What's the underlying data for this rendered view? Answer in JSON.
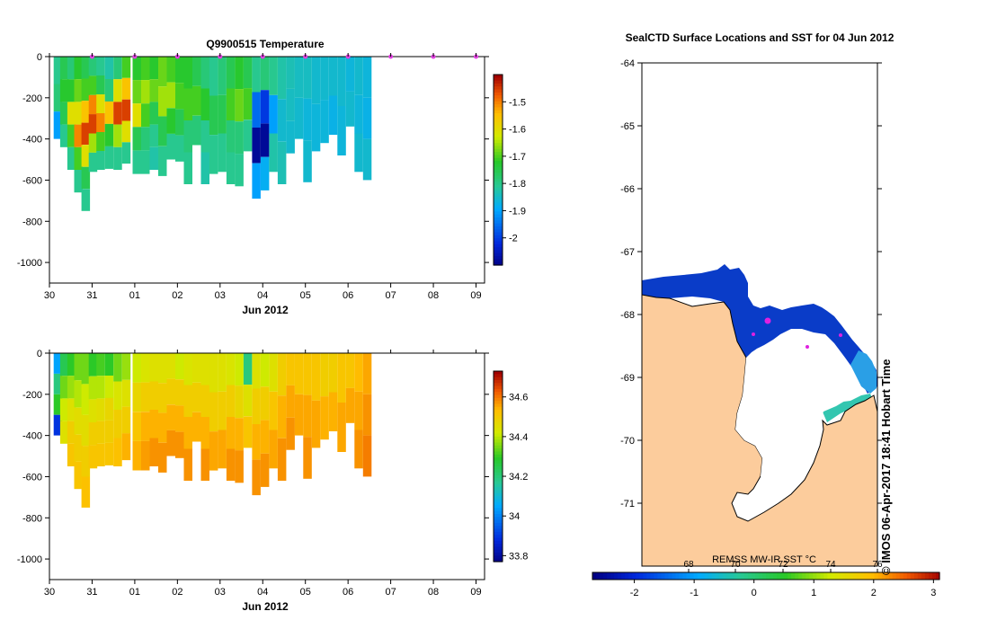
{
  "chart_data": [
    {
      "type": "heatmap",
      "title": "Q9900515  Temperature",
      "xlabel": "Jun 2012",
      "ylabel": "",
      "x_ticks": [
        "30",
        "31",
        "01",
        "02",
        "03",
        "04",
        "05",
        "06",
        "07",
        "08",
        "09"
      ],
      "y_ticks": [
        0,
        -200,
        -400,
        -600,
        -800,
        -1000
      ],
      "ylim": [
        -1100,
        0
      ],
      "xlim": [
        30.0,
        40.2
      ],
      "colorbar": {
        "ticks": [
          -1.5,
          -1.6,
          -1.7,
          -1.8,
          -1.9,
          -2
        ],
        "range": [
          -2.1,
          -1.4
        ]
      },
      "profile_marker_days": [
        31,
        32,
        33,
        34,
        35,
        36,
        37,
        38,
        39,
        40
      ],
      "profiles": [
        {
          "day": 30.2,
          "depth": 400,
          "v": [
            -1.8,
            -1.78,
            -1.9
          ]
        },
        {
          "day": 30.35,
          "depth": 440,
          "v": [
            -1.75,
            -1.72,
            -1.75,
            -1.8
          ]
        },
        {
          "day": 30.52,
          "depth": 550,
          "v": [
            -1.78,
            -1.72,
            -1.6,
            -1.7,
            -1.8
          ]
        },
        {
          "day": 30.68,
          "depth": 660,
          "v": [
            -1.72,
            -1.68,
            -1.6,
            -1.5,
            -1.7,
            -1.8
          ]
        },
        {
          "day": 30.85,
          "depth": 750,
          "v": [
            -1.75,
            -1.7,
            -1.55,
            -1.45,
            -1.6,
            -1.75,
            -1.8
          ]
        },
        {
          "day": 31.02,
          "depth": 560,
          "v": [
            -1.78,
            -1.7,
            -1.5,
            -1.45,
            -1.65,
            -1.8
          ]
        },
        {
          "day": 31.2,
          "depth": 550,
          "v": [
            -1.8,
            -1.75,
            -1.6,
            -1.5,
            -1.7,
            -1.8
          ]
        },
        {
          "day": 31.4,
          "depth": 545,
          "v": [
            -1.82,
            -1.78,
            -1.55,
            -1.72,
            -1.8
          ]
        },
        {
          "day": 31.6,
          "depth": 550,
          "v": [
            -1.78,
            -1.6,
            -1.45,
            -1.65,
            -1.8
          ]
        },
        {
          "day": 31.8,
          "depth": 520,
          "v": [
            -1.7,
            -1.55,
            -1.45,
            -1.6,
            -1.8
          ]
        },
        {
          "day": 32.05,
          "depth": 570,
          "v": [
            -1.72,
            -1.68,
            -1.6,
            -1.75,
            -1.8
          ]
        },
        {
          "day": 32.25,
          "depth": 570,
          "v": [
            -1.7,
            -1.65,
            -1.7,
            -1.78,
            -1.8
          ]
        },
        {
          "day": 32.45,
          "depth": 550,
          "v": [
            -1.72,
            -1.68,
            -1.75,
            -1.8,
            -1.82
          ]
        },
        {
          "day": 32.65,
          "depth": 580,
          "v": [
            -1.68,
            -1.65,
            -1.75,
            -1.8
          ]
        },
        {
          "day": 32.85,
          "depth": 500,
          "v": [
            -1.7,
            -1.65,
            -1.72,
            -1.8
          ]
        },
        {
          "day": 33.05,
          "depth": 510,
          "v": [
            -1.72,
            -1.7,
            -1.75,
            -1.8
          ]
        },
        {
          "day": 33.25,
          "depth": 620,
          "v": [
            -1.72,
            -1.7,
            -1.78,
            -1.8
          ]
        },
        {
          "day": 33.45,
          "depth": 430,
          "v": [
            -1.75,
            -1.7,
            -1.78
          ]
        },
        {
          "day": 33.65,
          "depth": 620,
          "v": [
            -1.78,
            -1.72,
            -1.8,
            -1.82
          ]
        },
        {
          "day": 33.85,
          "depth": 570,
          "v": [
            -1.8,
            -1.75,
            -1.8
          ]
        },
        {
          "day": 34.05,
          "depth": 560,
          "v": [
            -1.78,
            -1.75,
            -1.8
          ]
        },
        {
          "day": 34.25,
          "depth": 620,
          "v": [
            -1.75,
            -1.7,
            -1.78,
            -1.8
          ]
        },
        {
          "day": 34.45,
          "depth": 630,
          "v": [
            -1.72,
            -1.68,
            -1.78,
            -1.8
          ]
        },
        {
          "day": 34.65,
          "depth": 460,
          "v": [
            -1.75,
            -1.7,
            -1.8
          ]
        },
        {
          "day": 34.85,
          "depth": 690,
          "v": [
            -1.8,
            -1.95,
            -2.08,
            -1.9
          ]
        },
        {
          "day": 35.05,
          "depth": 650,
          "v": [
            -1.78,
            -2.0,
            -2.08,
            -1.88
          ]
        },
        {
          "day": 35.25,
          "depth": 560,
          "v": [
            -1.8,
            -1.9,
            -1.82
          ]
        },
        {
          "day": 35.45,
          "depth": 620,
          "v": [
            -1.82,
            -1.85,
            -1.83
          ]
        },
        {
          "day": 35.65,
          "depth": 470,
          "v": [
            -1.83,
            -1.84,
            -1.85
          ]
        },
        {
          "day": 35.85,
          "depth": 400,
          "v": [
            -1.84,
            -1.85
          ]
        },
        {
          "day": 36.05,
          "depth": 610,
          "v": [
            -1.84,
            -1.86,
            -1.85
          ]
        },
        {
          "day": 36.25,
          "depth": 460,
          "v": [
            -1.85,
            -1.86
          ]
        },
        {
          "day": 36.45,
          "depth": 420,
          "v": [
            -1.85,
            -1.86
          ]
        },
        {
          "day": 36.65,
          "depth": 380,
          "v": [
            -1.85,
            -1.87
          ]
        },
        {
          "day": 36.85,
          "depth": 480,
          "v": [
            -1.85,
            -1.86
          ]
        },
        {
          "day": 37.05,
          "depth": 340,
          "v": [
            -1.86,
            -1.85
          ]
        },
        {
          "day": 37.25,
          "depth": 560,
          "v": [
            -1.85,
            -1.86,
            -1.85
          ]
        },
        {
          "day": 37.45,
          "depth": 600,
          "v": [
            -1.86,
            -1.87,
            -1.85
          ]
        }
      ],
      "min_depths": [
        400,
        440,
        550,
        660,
        750,
        560,
        550,
        545,
        550,
        520,
        570,
        570,
        550,
        580,
        500,
        510,
        620,
        430,
        620,
        570,
        560,
        620,
        630,
        460,
        690,
        650,
        560,
        620,
        470,
        400,
        610,
        460,
        420,
        380,
        480,
        340,
        560,
        600
      ]
    },
    {
      "type": "heatmap",
      "title": "",
      "xlabel": "Jun 2012",
      "ylabel": "",
      "x_ticks": [
        "30",
        "31",
        "01",
        "02",
        "03",
        "04",
        "05",
        "06",
        "07",
        "08",
        "09"
      ],
      "y_ticks": [
        0,
        -200,
        -400,
        -600,
        -800,
        -1000
      ],
      "ylim": [
        -1100,
        0
      ],
      "xlim": [
        30.0,
        40.2
      ],
      "colorbar": {
        "ticks": [
          34.6,
          34.4,
          34.2,
          34,
          33.8
        ],
        "range": [
          33.77,
          34.73
        ]
      },
      "profiles": [
        {
          "day": 30.2,
          "depth": 400,
          "v": [
            34.05,
            34.2,
            34.3,
            33.9
          ]
        },
        {
          "day": 30.35,
          "depth": 440,
          "v": [
            34.25,
            34.35,
            34.42,
            34.45
          ]
        },
        {
          "day": 30.52,
          "depth": 550,
          "v": [
            34.3,
            34.38,
            34.45,
            34.5,
            34.52
          ]
        },
        {
          "day": 30.68,
          "depth": 660,
          "v": [
            34.35,
            34.4,
            34.46,
            34.5,
            34.52
          ]
        },
        {
          "day": 30.85,
          "depth": 750,
          "v": [
            34.35,
            34.42,
            34.46,
            34.5,
            34.53
          ]
        },
        {
          "day": 31.02,
          "depth": 560,
          "v": [
            34.3,
            34.4,
            34.45,
            34.5,
            34.52
          ]
        },
        {
          "day": 31.2,
          "depth": 550,
          "v": [
            34.32,
            34.4,
            34.46,
            34.5,
            34.52
          ]
        },
        {
          "day": 31.4,
          "depth": 545,
          "v": [
            34.3,
            34.42,
            34.48,
            34.5,
            34.52
          ]
        },
        {
          "day": 31.6,
          "depth": 550,
          "v": [
            34.35,
            34.44,
            34.5,
            34.53
          ]
        },
        {
          "day": 31.8,
          "depth": 520,
          "v": [
            34.38,
            34.45,
            34.5,
            34.55
          ]
        },
        {
          "day": 32.05,
          "depth": 570,
          "v": [
            34.42,
            34.48,
            34.52,
            34.55
          ]
        },
        {
          "day": 32.25,
          "depth": 570,
          "v": [
            34.44,
            34.5,
            34.55,
            34.57
          ]
        },
        {
          "day": 32.45,
          "depth": 550,
          "v": [
            34.45,
            34.5,
            34.55,
            34.58
          ]
        },
        {
          "day": 32.65,
          "depth": 580,
          "v": [
            34.45,
            34.5,
            34.55,
            34.58
          ]
        },
        {
          "day": 32.85,
          "depth": 500,
          "v": [
            34.45,
            34.5,
            34.55,
            34.58
          ]
        },
        {
          "day": 33.05,
          "depth": 510,
          "v": [
            34.42,
            34.5,
            34.55,
            34.58
          ]
        },
        {
          "day": 33.25,
          "depth": 620,
          "v": [
            34.44,
            34.5,
            34.55,
            34.58
          ]
        },
        {
          "day": 33.45,
          "depth": 430,
          "v": [
            34.45,
            34.5,
            34.55
          ]
        },
        {
          "day": 33.65,
          "depth": 620,
          "v": [
            34.45,
            34.5,
            34.55,
            34.58
          ]
        },
        {
          "day": 33.85,
          "depth": 570,
          "v": [
            34.45,
            34.5,
            34.56
          ]
        },
        {
          "day": 34.05,
          "depth": 560,
          "v": [
            34.45,
            34.5,
            34.56
          ]
        },
        {
          "day": 34.25,
          "depth": 620,
          "v": [
            34.44,
            34.5,
            34.55,
            34.58
          ]
        },
        {
          "day": 34.45,
          "depth": 630,
          "v": [
            34.42,
            34.48,
            34.55,
            34.58
          ]
        },
        {
          "day": 34.65,
          "depth": 460,
          "v": [
            34.2,
            34.45,
            34.52
          ]
        },
        {
          "day": 34.85,
          "depth": 690,
          "v": [
            34.45,
            34.5,
            34.55,
            34.58
          ]
        },
        {
          "day": 35.05,
          "depth": 650,
          "v": [
            34.42,
            34.5,
            34.55,
            34.58
          ]
        },
        {
          "day": 35.25,
          "depth": 560,
          "v": [
            34.45,
            34.52,
            34.56
          ]
        },
        {
          "day": 35.45,
          "depth": 620,
          "v": [
            34.5,
            34.55,
            34.58
          ]
        },
        {
          "day": 35.65,
          "depth": 470,
          "v": [
            34.52,
            34.56,
            34.58
          ]
        },
        {
          "day": 35.85,
          "depth": 400,
          "v": [
            34.52,
            34.56
          ]
        },
        {
          "day": 36.05,
          "depth": 610,
          "v": [
            34.52,
            34.56,
            34.58
          ]
        },
        {
          "day": 36.25,
          "depth": 460,
          "v": [
            34.52,
            34.56
          ]
        },
        {
          "day": 36.45,
          "depth": 420,
          "v": [
            34.5,
            34.55
          ]
        },
        {
          "day": 36.65,
          "depth": 380,
          "v": [
            34.5,
            34.55
          ]
        },
        {
          "day": 36.85,
          "depth": 480,
          "v": [
            34.52,
            34.56
          ]
        },
        {
          "day": 37.05,
          "depth": 340,
          "v": [
            34.52,
            34.56
          ]
        },
        {
          "day": 37.25,
          "depth": 560,
          "v": [
            34.54,
            34.56,
            34.58
          ]
        },
        {
          "day": 37.45,
          "depth": 600,
          "v": [
            34.56,
            34.58,
            34.6
          ]
        }
      ]
    },
    {
      "type": "heatmap",
      "title": "SealCTD Surface Locations and SST for 04 Jun 2012",
      "xlabel": "",
      "ylabel": "",
      "y_ticks": [
        -64,
        -65,
        -66,
        -67,
        -68,
        -69,
        -70,
        -71
      ],
      "ylim": [
        -72,
        -64
      ],
      "colorbar": {
        "ticks": [
          -2,
          -1,
          0,
          1,
          2,
          3
        ],
        "secondary_ticks": [
          "68",
          "70",
          "72",
          "74",
          "76"
        ],
        "range": [
          -2.7,
          3.1
        ],
        "label": "REMSS MW-IR SST °C"
      },
      "seal_positions": [
        [
          -68.1
        ],
        [
          -68.3
        ],
        [
          -68.5
        ]
      ],
      "credit": "©  IMOS 06-Apr-2017 18:41 Hobart Time"
    }
  ]
}
